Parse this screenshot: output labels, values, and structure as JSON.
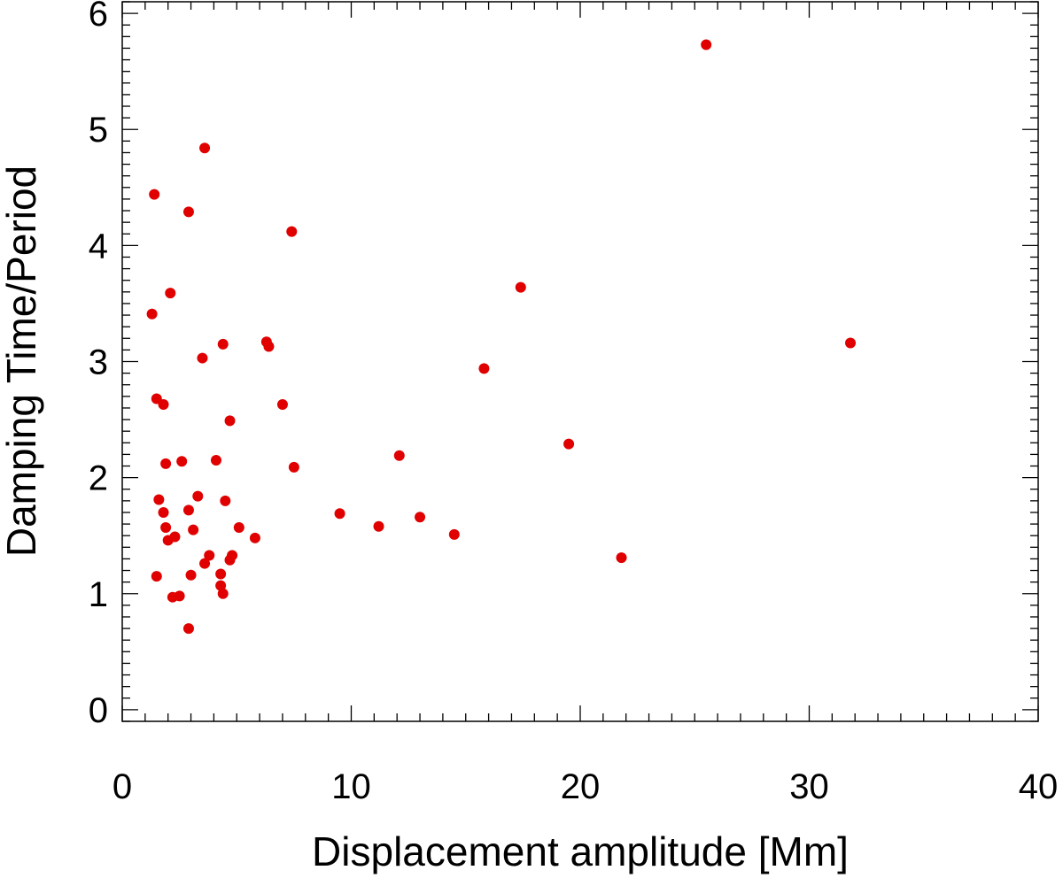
{
  "chart_data": {
    "type": "scatter",
    "title": "",
    "xlabel": "Displacement amplitude [Mm]",
    "ylabel": "Damping Time/Period",
    "xlim": [
      0,
      40
    ],
    "ylim": [
      -0.1,
      6.1
    ],
    "xticks": [
      0,
      10,
      20,
      30,
      40
    ],
    "yticks": [
      0,
      1,
      2,
      3,
      4,
      5,
      6
    ],
    "xtick_labels": [
      "0",
      "10",
      "20",
      "30",
      "40"
    ],
    "ytick_labels": [
      "0",
      "1",
      "2",
      "3",
      "4",
      "5",
      "6"
    ],
    "x_minor_step": 1,
    "y_minor_step": 0.1,
    "grid": false,
    "marker_color": "#e00000",
    "series": [
      {
        "points": [
          [
            1.3,
            3.41
          ],
          [
            1.4,
            4.44
          ],
          [
            1.5,
            2.68
          ],
          [
            1.5,
            1.15
          ],
          [
            1.6,
            1.81
          ],
          [
            1.8,
            2.63
          ],
          [
            1.8,
            1.7
          ],
          [
            1.9,
            2.12
          ],
          [
            1.9,
            1.57
          ],
          [
            2.0,
            1.46
          ],
          [
            2.1,
            3.59
          ],
          [
            2.2,
            0.97
          ],
          [
            2.3,
            1.49
          ],
          [
            2.5,
            0.98
          ],
          [
            2.6,
            2.14
          ],
          [
            2.9,
            0.7
          ],
          [
            2.9,
            1.72
          ],
          [
            2.9,
            4.29
          ],
          [
            3.0,
            1.16
          ],
          [
            3.1,
            1.55
          ],
          [
            3.3,
            1.84
          ],
          [
            3.5,
            3.03
          ],
          [
            3.6,
            4.84
          ],
          [
            3.6,
            1.26
          ],
          [
            3.8,
            1.33
          ],
          [
            4.1,
            2.15
          ],
          [
            4.3,
            1.17
          ],
          [
            4.3,
            1.07
          ],
          [
            4.4,
            3.15
          ],
          [
            4.4,
            1.0
          ],
          [
            4.5,
            1.8
          ],
          [
            4.7,
            1.29
          ],
          [
            4.7,
            2.49
          ],
          [
            4.8,
            1.33
          ],
          [
            5.1,
            1.57
          ],
          [
            5.8,
            1.48
          ],
          [
            6.3,
            3.17
          ],
          [
            6.4,
            3.13
          ],
          [
            7.0,
            2.63
          ],
          [
            7.4,
            4.12
          ],
          [
            7.5,
            2.09
          ],
          [
            9.5,
            1.69
          ],
          [
            11.2,
            1.58
          ],
          [
            12.1,
            2.19
          ],
          [
            13.0,
            1.66
          ],
          [
            14.5,
            1.51
          ],
          [
            15.8,
            2.94
          ],
          [
            17.4,
            3.64
          ],
          [
            19.5,
            2.29
          ],
          [
            21.8,
            1.31
          ],
          [
            25.5,
            5.73
          ],
          [
            31.8,
            3.16
          ]
        ]
      }
    ]
  }
}
